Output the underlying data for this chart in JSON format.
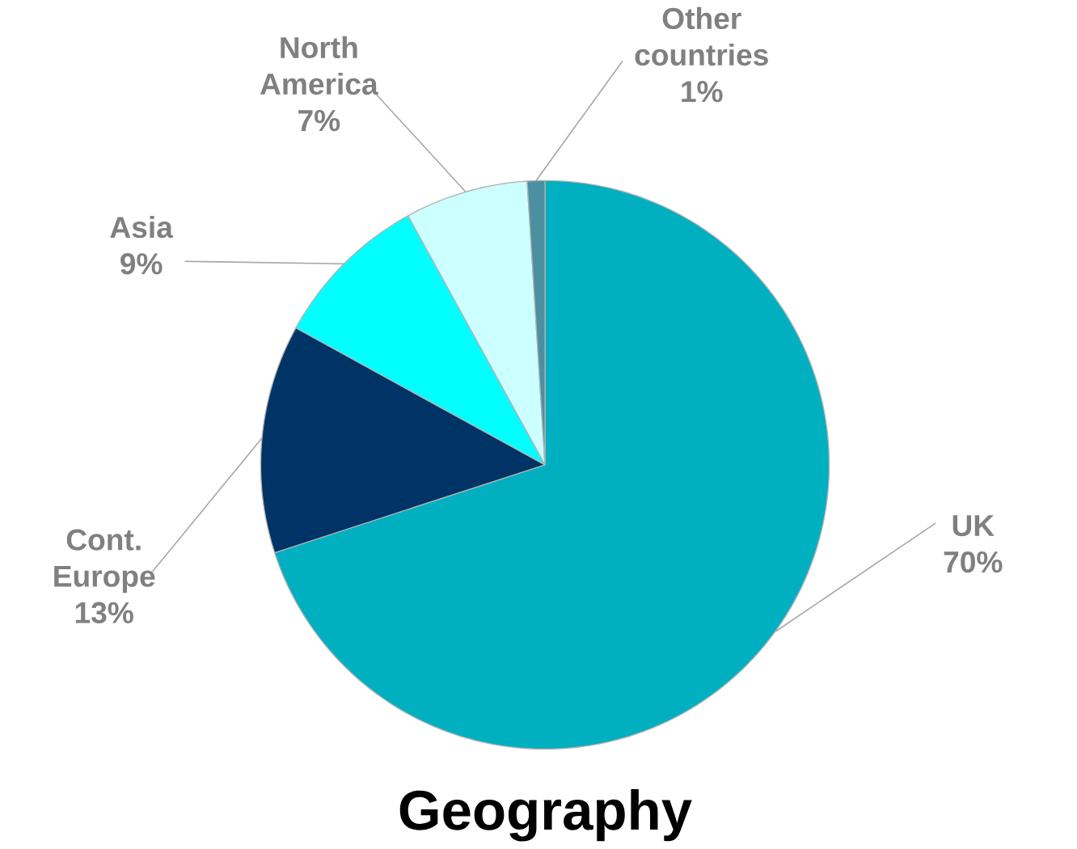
{
  "chart_data": {
    "type": "pie",
    "title": "Geography",
    "categories": [
      "UK",
      "Cont. Europe",
      "Asia",
      "North America",
      "Other countries"
    ],
    "values": [
      70,
      13,
      9,
      7,
      1
    ],
    "value_labels": [
      "70%",
      "13%",
      "9%",
      "7%",
      "1%"
    ],
    "colors": [
      "#00b0c0",
      "#003366",
      "#00ffff",
      "#ccffff",
      "#4a90a0"
    ]
  }
}
